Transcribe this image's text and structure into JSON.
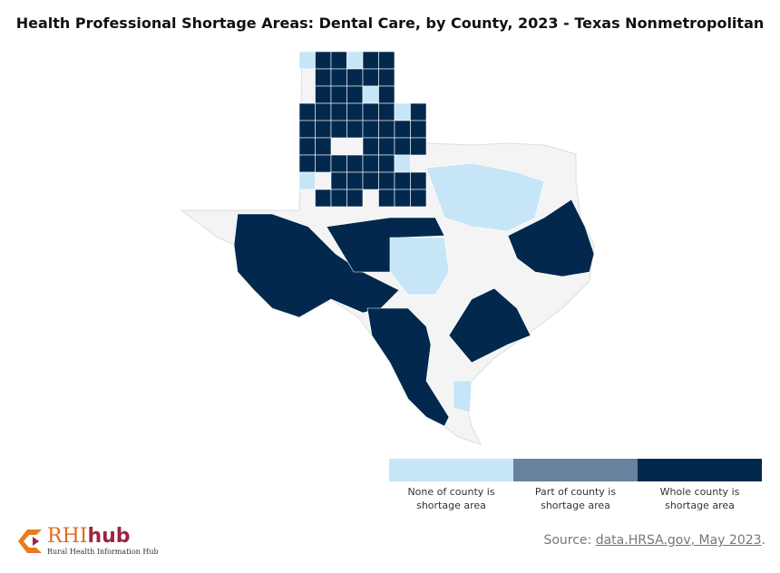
{
  "title": "Health Professional Shortage Areas: Dental Care, by County, 2023 - Texas Nonmetropolitan",
  "colors": {
    "none": "#c6e6f7",
    "part": "#66829e",
    "whole": "#02284d",
    "metro": "#f4f4f4"
  },
  "legend": [
    {
      "label": "None of county is shortage area",
      "color": "#c6e6f7"
    },
    {
      "label": "Part of county is shortage area",
      "color": "#66829e"
    },
    {
      "label": "Whole county is shortage area",
      "color": "#02284d"
    }
  ],
  "county_status_rows": [
    "133133",
    "033333",
    "033313",
    "33333313",
    "33333333",
    "33003333",
    "33333310",
    "10333333",
    "03330333"
  ],
  "source": {
    "prefix": "Source: ",
    "link": "data.HRSA.gov, May 2023",
    "suffix": "."
  },
  "logo": {
    "name": "RHI",
    "hub": "hub",
    "tagline": "Rural Health Information Hub"
  }
}
